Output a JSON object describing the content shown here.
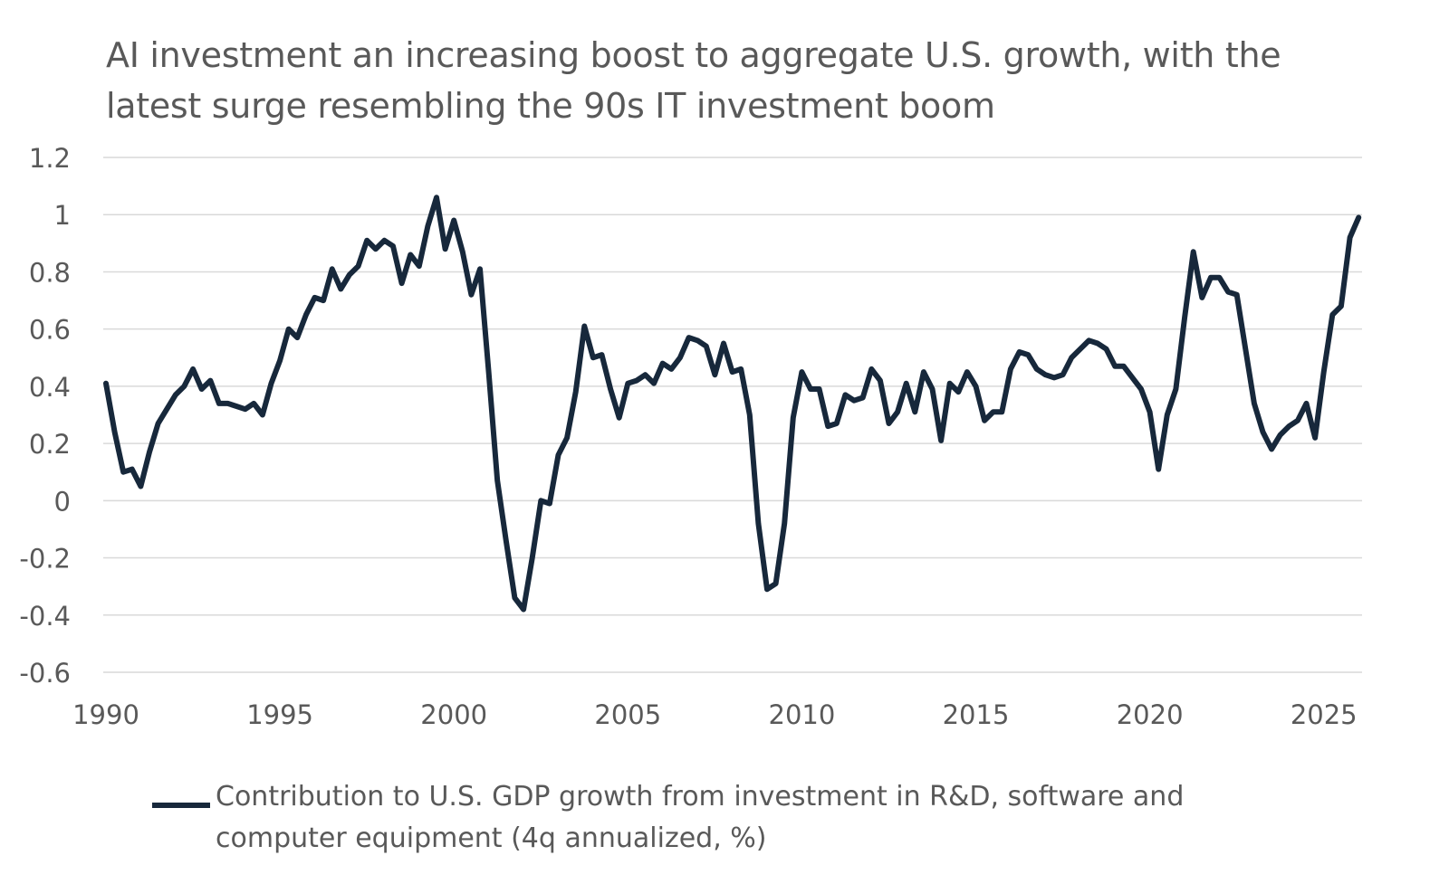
{
  "title_lines": [
    "AI investment an increasing boost to aggregate U.S. growth, with the",
    "latest surge resembling the 90s IT investment boom"
  ],
  "chart_data": {
    "type": "line",
    "title": "AI investment an increasing boost to aggregate U.S. growth, with the latest surge resembling the 90s IT investment boom",
    "xlabel": "",
    "ylabel": "",
    "xlim": [
      1990,
      2026.1
    ],
    "ylim": [
      -0.6,
      1.2
    ],
    "yticks": [
      1.2,
      1,
      0.8,
      0.6,
      0.4,
      0.2,
      0,
      -0.2,
      -0.4,
      -0.6
    ],
    "ytick_labels": [
      "1.2",
      "1",
      "0.8",
      "0.6",
      "0.4",
      "0.2",
      "0",
      "-0.2",
      "-0.4",
      "-0.6"
    ],
    "xticks": [
      1990,
      1995,
      2000,
      2005,
      2010,
      2015,
      2020,
      2025
    ],
    "xtick_labels": [
      "1990",
      "1995",
      "2000",
      "2005",
      "2010",
      "2015",
      "2020",
      "2025"
    ],
    "grid": "horizontal",
    "legend": "bottom",
    "color": "#17283b",
    "series": [
      {
        "name": "Contribution to U.S. GDP growth from investment in R&D, software and computer equipment (4q annualized, %)",
        "x": [
          1990.0,
          1990.25,
          1990.5,
          1990.75,
          1991.0,
          1991.25,
          1991.5,
          1991.75,
          1992.0,
          1992.25,
          1992.5,
          1992.75,
          1993.0,
          1993.25,
          1993.5,
          1993.75,
          1994.0,
          1994.25,
          1994.5,
          1994.75,
          1995.0,
          1995.25,
          1995.5,
          1995.75,
          1996.0,
          1996.25,
          1996.5,
          1996.75,
          1997.0,
          1997.25,
          1997.5,
          1997.75,
          1998.0,
          1998.25,
          1998.5,
          1998.75,
          1999.0,
          1999.25,
          1999.5,
          1999.75,
          2000.0,
          2000.25,
          2000.5,
          2000.75,
          2001.0,
          2001.25,
          2001.5,
          2001.75,
          2002.0,
          2002.25,
          2002.5,
          2002.75,
          2003.0,
          2003.25,
          2003.5,
          2003.75,
          2004.0,
          2004.25,
          2004.5,
          2004.75,
          2005.0,
          2005.25,
          2005.5,
          2005.75,
          2006.0,
          2006.25,
          2006.5,
          2006.75,
          2007.0,
          2007.25,
          2007.5,
          2007.75,
          2008.0,
          2008.25,
          2008.5,
          2008.75,
          2009.0,
          2009.25,
          2009.5,
          2009.75,
          2010.0,
          2010.25,
          2010.5,
          2010.75,
          2011.0,
          2011.25,
          2011.5,
          2011.75,
          2012.0,
          2012.25,
          2012.5,
          2012.75,
          2013.0,
          2013.25,
          2013.5,
          2013.75,
          2014.0,
          2014.25,
          2014.5,
          2014.75,
          2015.0,
          2015.25,
          2015.5,
          2015.75,
          2016.0,
          2016.25,
          2016.5,
          2016.75,
          2017.0,
          2017.25,
          2017.5,
          2017.75,
          2018.0,
          2018.25,
          2018.5,
          2018.75,
          2019.0,
          2019.25,
          2019.5,
          2019.75,
          2020.0,
          2020.25,
          2020.5,
          2020.75,
          2021.0,
          2021.25,
          2021.5,
          2021.75,
          2022.0,
          2022.25,
          2022.5,
          2022.75,
          2023.0,
          2023.25,
          2023.5,
          2023.75,
          2024.0,
          2024.25,
          2024.5,
          2024.75,
          2025.0,
          2025.25,
          2025.5,
          2025.75,
          2026.0
        ],
        "values": [
          0.41,
          0.24,
          0.1,
          0.11,
          0.05,
          0.17,
          0.27,
          0.32,
          0.37,
          0.4,
          0.46,
          0.39,
          0.42,
          0.34,
          0.34,
          0.33,
          0.32,
          0.34,
          0.3,
          0.41,
          0.49,
          0.6,
          0.57,
          0.65,
          0.71,
          0.7,
          0.81,
          0.74,
          0.79,
          0.82,
          0.91,
          0.88,
          0.91,
          0.89,
          0.76,
          0.86,
          0.82,
          0.96,
          1.06,
          0.88,
          0.98,
          0.87,
          0.72,
          0.81,
          0.45,
          0.07,
          -0.14,
          -0.34,
          -0.38,
          -0.2,
          0.0,
          -0.01,
          0.16,
          0.22,
          0.38,
          0.61,
          0.5,
          0.51,
          0.39,
          0.29,
          0.41,
          0.42,
          0.44,
          0.41,
          0.48,
          0.46,
          0.5,
          0.57,
          0.56,
          0.54,
          0.44,
          0.55,
          0.45,
          0.46,
          0.3,
          -0.08,
          -0.31,
          -0.29,
          -0.08,
          0.29,
          0.45,
          0.39,
          0.39,
          0.26,
          0.27,
          0.37,
          0.35,
          0.36,
          0.46,
          0.42,
          0.27,
          0.31,
          0.41,
          0.31,
          0.45,
          0.39,
          0.21,
          0.41,
          0.38,
          0.45,
          0.4,
          0.28,
          0.31,
          0.31,
          0.46,
          0.52,
          0.51,
          0.46,
          0.44,
          0.43,
          0.44,
          0.5,
          0.53,
          0.56,
          0.55,
          0.53,
          0.47,
          0.47,
          0.43,
          0.39,
          0.31,
          0.11,
          0.3,
          0.39,
          0.64,
          0.87,
          0.71,
          0.78,
          0.78,
          0.73,
          0.72,
          0.53,
          0.34,
          0.24,
          0.18,
          0.23,
          0.26,
          0.28,
          0.34,
          0.22,
          0.45,
          0.65,
          0.68,
          0.92,
          0.99
        ]
      }
    ]
  }
}
